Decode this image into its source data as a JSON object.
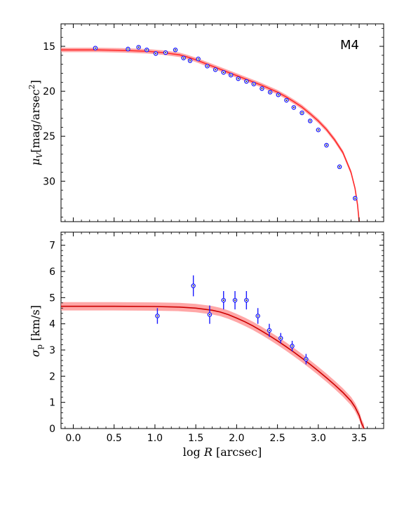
{
  "chart_data": [
    {
      "type": "scatter",
      "panel": "top",
      "label": "M4",
      "ylabel": "μ_V [mag/arsec^2]",
      "ylabel_parts": {
        "symbol": "μ",
        "sub": "V",
        "unit_pre": "[mag/arsec",
        "sup": "2",
        "unit_post": "]"
      },
      "xlim": [
        -0.15,
        3.8
      ],
      "ylim": [
        34.5,
        12.5
      ],
      "y_inverted": true,
      "xticks": [
        0.0,
        0.5,
        1.0,
        1.5,
        2.0,
        2.5,
        3.0,
        3.5
      ],
      "yticks": [
        15,
        20,
        25,
        30
      ],
      "ytick_labels": [
        "15",
        "20",
        "25",
        "30"
      ],
      "colors": {
        "points": "#1a1aff",
        "model": "#ff2b2b",
        "model_band": "#ff8a8a"
      },
      "series": [
        {
          "kind": "points",
          "x": [
            0.27,
            0.67,
            0.8,
            0.9,
            1.01,
            1.13,
            1.25,
            1.35,
            1.43,
            1.53,
            1.64,
            1.74,
            1.84,
            1.93,
            2.02,
            2.12,
            2.21,
            2.31,
            2.41,
            2.51,
            2.61,
            2.7,
            2.8,
            2.9,
            3.0,
            3.1,
            3.26,
            3.45
          ],
          "y": [
            15.2,
            15.3,
            15.1,
            15.4,
            15.8,
            15.7,
            15.4,
            16.3,
            16.6,
            16.4,
            17.2,
            17.6,
            17.9,
            18.2,
            18.6,
            18.9,
            19.2,
            19.7,
            20.1,
            20.4,
            21.0,
            21.8,
            22.4,
            23.3,
            24.3,
            26.0,
            28.4,
            31.9
          ]
        },
        {
          "kind": "model",
          "x": [
            -0.15,
            0.0,
            0.3,
            0.6,
            0.9,
            1.1,
            1.3,
            1.4,
            1.5,
            1.6,
            1.7,
            1.8,
            1.9,
            2.0,
            2.1,
            2.2,
            2.3,
            2.4,
            2.5,
            2.6,
            2.7,
            2.8,
            2.9,
            3.0,
            3.1,
            3.2,
            3.3,
            3.4,
            3.45,
            3.48,
            3.5
          ],
          "y": [
            15.4,
            15.4,
            15.4,
            15.45,
            15.55,
            15.7,
            15.95,
            16.2,
            16.5,
            16.85,
            17.2,
            17.55,
            17.9,
            18.25,
            18.6,
            18.95,
            19.3,
            19.7,
            20.1,
            20.6,
            21.15,
            21.75,
            22.5,
            23.3,
            24.25,
            25.4,
            26.8,
            29.0,
            30.8,
            32.6,
            34.5
          ],
          "band_halfwidth": 0.25
        }
      ]
    },
    {
      "type": "scatter",
      "panel": "bottom",
      "xlabel": "log R [arcsec]",
      "xlabel_parts": {
        "pre": "log ",
        "var": "R",
        "post": " [arcsec]"
      },
      "ylabel": "σ_p [km/s]",
      "ylabel_parts": {
        "symbol": "σ",
        "sub": "p",
        "unit": " [km/s]"
      },
      "xlim": [
        -0.15,
        3.8
      ],
      "ylim": [
        0,
        7.5
      ],
      "xticks": [
        0.0,
        0.5,
        1.0,
        1.5,
        2.0,
        2.5,
        3.0,
        3.5
      ],
      "xtick_labels": [
        "0.0",
        "0.5",
        "1.0",
        "1.5",
        "2.0",
        "2.5",
        "3.0",
        "3.5"
      ],
      "yticks": [
        0,
        1,
        2,
        3,
        4,
        5,
        6,
        7
      ],
      "ytick_labels": [
        "0",
        "1",
        "2",
        "3",
        "4",
        "5",
        "6",
        "7"
      ],
      "colors": {
        "points": "#1a1aff",
        "model": "#cc0000",
        "model_band": "#ff8a8a"
      },
      "series": [
        {
          "kind": "points_with_errors",
          "x": [
            1.03,
            1.47,
            1.67,
            1.84,
            1.98,
            2.12,
            2.26,
            2.4,
            2.54,
            2.68,
            2.85
          ],
          "y": [
            4.3,
            5.45,
            4.35,
            4.9,
            4.9,
            4.9,
            4.3,
            3.75,
            3.45,
            3.15,
            2.65
          ],
          "yerr": [
            0.3,
            0.4,
            0.35,
            0.35,
            0.35,
            0.35,
            0.3,
            0.25,
            0.2,
            0.2,
            0.2
          ]
        },
        {
          "kind": "model",
          "x": [
            -0.15,
            0.5,
            1.0,
            1.3,
            1.5,
            1.7,
            1.8,
            1.9,
            2.0,
            2.1,
            2.2,
            2.3,
            2.4,
            2.5,
            2.6,
            2.7,
            2.8,
            2.9,
            3.0,
            3.1,
            3.2,
            3.3,
            3.4,
            3.45,
            3.5,
            3.53,
            3.56
          ],
          "y": [
            4.67,
            4.67,
            4.66,
            4.64,
            4.6,
            4.52,
            4.45,
            4.35,
            4.22,
            4.08,
            3.92,
            3.74,
            3.55,
            3.35,
            3.14,
            2.92,
            2.69,
            2.45,
            2.2,
            1.94,
            1.67,
            1.38,
            1.05,
            0.82,
            0.5,
            0.2,
            0.0
          ],
          "band_halfwidth": 0.16
        }
      ]
    }
  ]
}
